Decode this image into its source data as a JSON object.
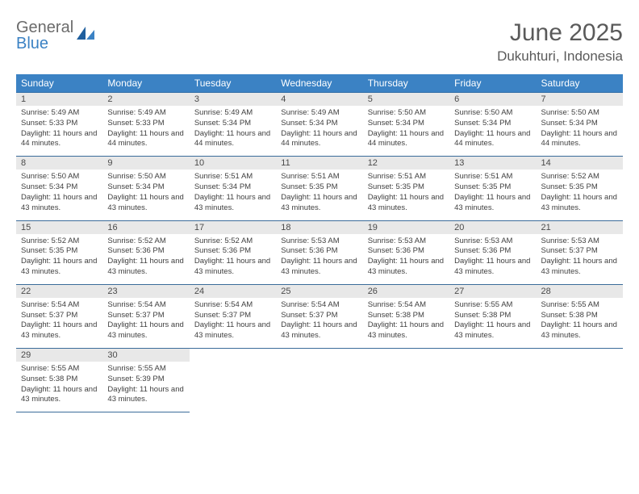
{
  "brand": {
    "line1": "General",
    "line2": "Blue"
  },
  "title": "June 2025",
  "location": "Dukuhturi, Indonesia",
  "colors": {
    "header_bg": "#3b82c4",
    "header_text": "#ffffff",
    "daynum_bg": "#e8e8e8",
    "cell_border": "#3b6c9a",
    "title_color": "#5a5a5a",
    "brand_gray": "#6b6b6b",
    "brand_blue": "#3b82c4"
  },
  "day_headers": [
    "Sunday",
    "Monday",
    "Tuesday",
    "Wednesday",
    "Thursday",
    "Friday",
    "Saturday"
  ],
  "weeks": [
    [
      {
        "n": "1",
        "sr": "5:49 AM",
        "ss": "5:33 PM",
        "dl": "11 hours and 44 minutes."
      },
      {
        "n": "2",
        "sr": "5:49 AM",
        "ss": "5:33 PM",
        "dl": "11 hours and 44 minutes."
      },
      {
        "n": "3",
        "sr": "5:49 AM",
        "ss": "5:34 PM",
        "dl": "11 hours and 44 minutes."
      },
      {
        "n": "4",
        "sr": "5:49 AM",
        "ss": "5:34 PM",
        "dl": "11 hours and 44 minutes."
      },
      {
        "n": "5",
        "sr": "5:50 AM",
        "ss": "5:34 PM",
        "dl": "11 hours and 44 minutes."
      },
      {
        "n": "6",
        "sr": "5:50 AM",
        "ss": "5:34 PM",
        "dl": "11 hours and 44 minutes."
      },
      {
        "n": "7",
        "sr": "5:50 AM",
        "ss": "5:34 PM",
        "dl": "11 hours and 44 minutes."
      }
    ],
    [
      {
        "n": "8",
        "sr": "5:50 AM",
        "ss": "5:34 PM",
        "dl": "11 hours and 43 minutes."
      },
      {
        "n": "9",
        "sr": "5:50 AM",
        "ss": "5:34 PM",
        "dl": "11 hours and 43 minutes."
      },
      {
        "n": "10",
        "sr": "5:51 AM",
        "ss": "5:34 PM",
        "dl": "11 hours and 43 minutes."
      },
      {
        "n": "11",
        "sr": "5:51 AM",
        "ss": "5:35 PM",
        "dl": "11 hours and 43 minutes."
      },
      {
        "n": "12",
        "sr": "5:51 AM",
        "ss": "5:35 PM",
        "dl": "11 hours and 43 minutes."
      },
      {
        "n": "13",
        "sr": "5:51 AM",
        "ss": "5:35 PM",
        "dl": "11 hours and 43 minutes."
      },
      {
        "n": "14",
        "sr": "5:52 AM",
        "ss": "5:35 PM",
        "dl": "11 hours and 43 minutes."
      }
    ],
    [
      {
        "n": "15",
        "sr": "5:52 AM",
        "ss": "5:35 PM",
        "dl": "11 hours and 43 minutes."
      },
      {
        "n": "16",
        "sr": "5:52 AM",
        "ss": "5:36 PM",
        "dl": "11 hours and 43 minutes."
      },
      {
        "n": "17",
        "sr": "5:52 AM",
        "ss": "5:36 PM",
        "dl": "11 hours and 43 minutes."
      },
      {
        "n": "18",
        "sr": "5:53 AM",
        "ss": "5:36 PM",
        "dl": "11 hours and 43 minutes."
      },
      {
        "n": "19",
        "sr": "5:53 AM",
        "ss": "5:36 PM",
        "dl": "11 hours and 43 minutes."
      },
      {
        "n": "20",
        "sr": "5:53 AM",
        "ss": "5:36 PM",
        "dl": "11 hours and 43 minutes."
      },
      {
        "n": "21",
        "sr": "5:53 AM",
        "ss": "5:37 PM",
        "dl": "11 hours and 43 minutes."
      }
    ],
    [
      {
        "n": "22",
        "sr": "5:54 AM",
        "ss": "5:37 PM",
        "dl": "11 hours and 43 minutes."
      },
      {
        "n": "23",
        "sr": "5:54 AM",
        "ss": "5:37 PM",
        "dl": "11 hours and 43 minutes."
      },
      {
        "n": "24",
        "sr": "5:54 AM",
        "ss": "5:37 PM",
        "dl": "11 hours and 43 minutes."
      },
      {
        "n": "25",
        "sr": "5:54 AM",
        "ss": "5:37 PM",
        "dl": "11 hours and 43 minutes."
      },
      {
        "n": "26",
        "sr": "5:54 AM",
        "ss": "5:38 PM",
        "dl": "11 hours and 43 minutes."
      },
      {
        "n": "27",
        "sr": "5:55 AM",
        "ss": "5:38 PM",
        "dl": "11 hours and 43 minutes."
      },
      {
        "n": "28",
        "sr": "5:55 AM",
        "ss": "5:38 PM",
        "dl": "11 hours and 43 minutes."
      }
    ],
    [
      {
        "n": "29",
        "sr": "5:55 AM",
        "ss": "5:38 PM",
        "dl": "11 hours and 43 minutes."
      },
      {
        "n": "30",
        "sr": "5:55 AM",
        "ss": "5:39 PM",
        "dl": "11 hours and 43 minutes."
      },
      null,
      null,
      null,
      null,
      null
    ]
  ],
  "labels": {
    "sunrise": "Sunrise:",
    "sunset": "Sunset:",
    "daylight": "Daylight:"
  }
}
